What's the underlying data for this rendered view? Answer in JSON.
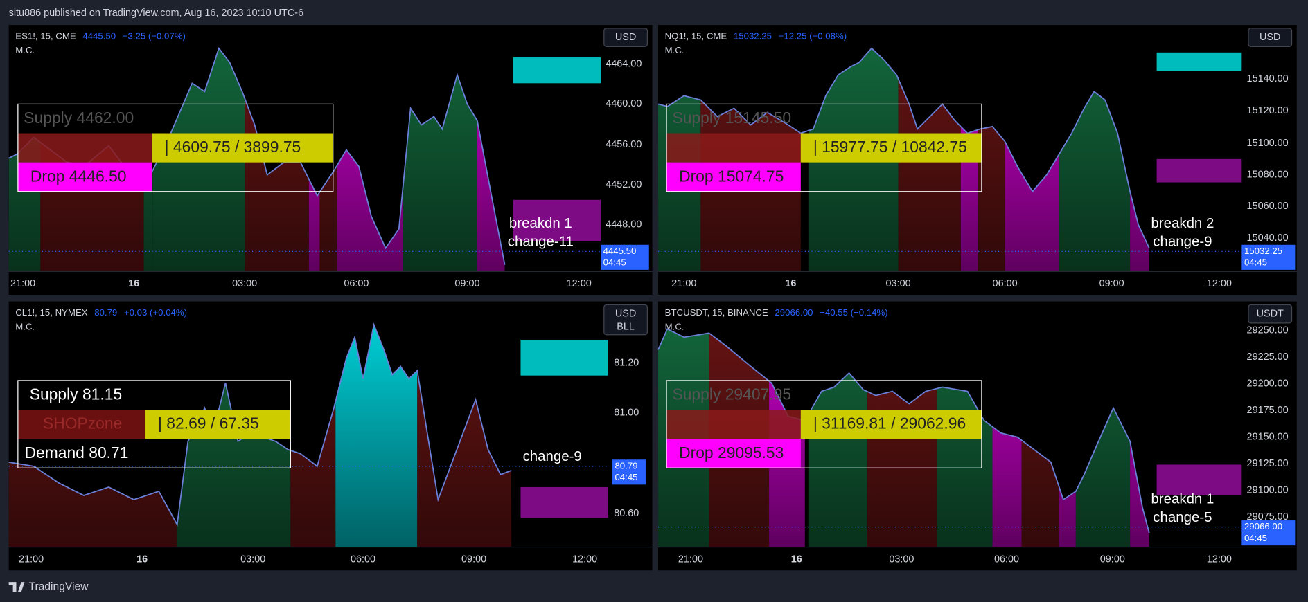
{
  "header": {
    "title": "situ886 published on TradingView.com, Aug 16, 2023 10:10 UTC-6"
  },
  "panels": [
    {
      "symbol": "ES1!, 15, CME",
      "price": "4445.50",
      "change": "−3.25 (−0.07%)",
      "indicator": "M.C.",
      "currency": [
        "USD"
      ],
      "yticks": [
        "4464.00",
        "4460.00",
        "4456.00",
        "4452.00",
        "4448.00"
      ],
      "xticks": [
        "21:00",
        "16",
        "03:00",
        "06:00",
        "09:00",
        "12:00"
      ],
      "last_price": "4445.50",
      "countdown": "04:45",
      "box": {
        "top": "Supply  4462.00",
        "range": "|  4609.75 / 3899.75",
        "bottom": "Drop  4446.50"
      },
      "annotations": [
        "breakdn 1",
        "change-11"
      ]
    },
    {
      "symbol": "NQ1!, 15, CME",
      "price": "15032.25",
      "change": "−12.25 (−0.08%)",
      "indicator": "M.C.",
      "currency": [
        "USD"
      ],
      "yticks": [
        "15140.00",
        "15120.00",
        "15100.00",
        "15080.00",
        "15060.00",
        "15040.00"
      ],
      "xticks": [
        "21:00",
        "16",
        "03:00",
        "06:00",
        "09:00",
        "12:00"
      ],
      "last_price": "15032.25",
      "countdown": "04:45",
      "box": {
        "top": "Supply  15145.50",
        "range": "|  15977.75 / 10842.75",
        "bottom": "Drop  15074.75"
      },
      "annotations": [
        "breakdn 2",
        "change-9"
      ]
    },
    {
      "symbol": "CL1!, 15, NYMEX",
      "price": "80.79",
      "change": "+0.03 (+0.04%)",
      "indicator": "M.C.",
      "currency": [
        "USD",
        "BLL"
      ],
      "yticks": [
        "81.20",
        "81.00",
        "80.60"
      ],
      "xticks": [
        "21:00",
        "16",
        "03:00",
        "06:00",
        "09:00",
        "12:00"
      ],
      "last_price": "80.79",
      "countdown": "04:45",
      "box": {
        "top": "Supply  81.15",
        "zone": "SHOPzone",
        "range": "|  82.69 / 67.35",
        "bottom": "Demand  80.71"
      },
      "annotations": [
        "change-9"
      ]
    },
    {
      "symbol": "BTCUSDT, 15, BINANCE",
      "price": "29066.00",
      "change": "−40.55 (−0.14%)",
      "indicator": "M.C.",
      "currency": [
        "USDT"
      ],
      "yticks": [
        "29250.00",
        "29225.00",
        "29200.00",
        "29175.00",
        "29150.00",
        "29125.00",
        "29100.00",
        "29075.00"
      ],
      "xticks": [
        "21:00",
        "16",
        "03:00",
        "06:00",
        "09:00",
        "12:00"
      ],
      "last_price": "29066.00",
      "countdown": "04:45",
      "box": {
        "top": "Supply  29407.95",
        "range": "|  31169.81 / 29062.96",
        "bottom": "Drop  29095.53"
      },
      "annotations": [
        "breakdn 1",
        "change-5"
      ]
    }
  ],
  "footer": {
    "brand": "TradingView"
  }
}
